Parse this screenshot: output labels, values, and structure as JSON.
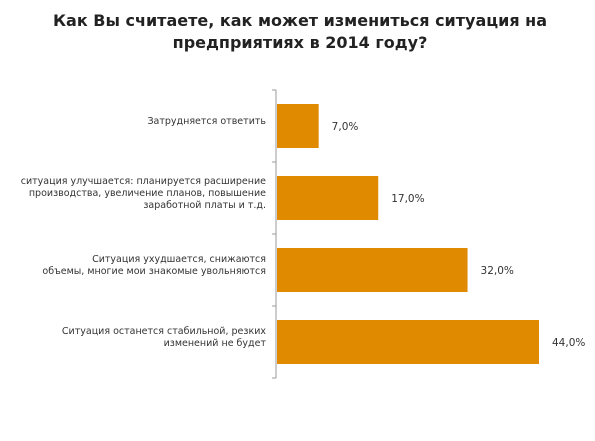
{
  "chart_data": {
    "type": "bar",
    "orientation": "horizontal",
    "title": [
      "Как Вы считаете, как может измениться ситуация на",
      "предприятиях в 2014 году?"
    ],
    "categories": [
      [
        "Затрудняется ответить"
      ],
      [
        "ситуация улучшается:  планируется расширение",
        "производства, увеличение планов, повышение",
        "заработной платы и т.д."
      ],
      [
        "Ситуация ухудшается, снижаются",
        "объемы, многие мои знакомые увольняются"
      ],
      [
        "Ситуация останется стабильной, резких",
        "изменений не будет"
      ]
    ],
    "values": [
      7.0,
      17.0,
      32.0,
      44.0
    ],
    "value_labels": [
      "7,0%",
      "17,0%",
      "32,0%",
      "44,0%"
    ],
    "xlim": [
      0,
      50
    ],
    "unit": "%",
    "bar_color": "#e08a00",
    "axis_color": "#999999",
    "grid": false,
    "legend": "none"
  }
}
